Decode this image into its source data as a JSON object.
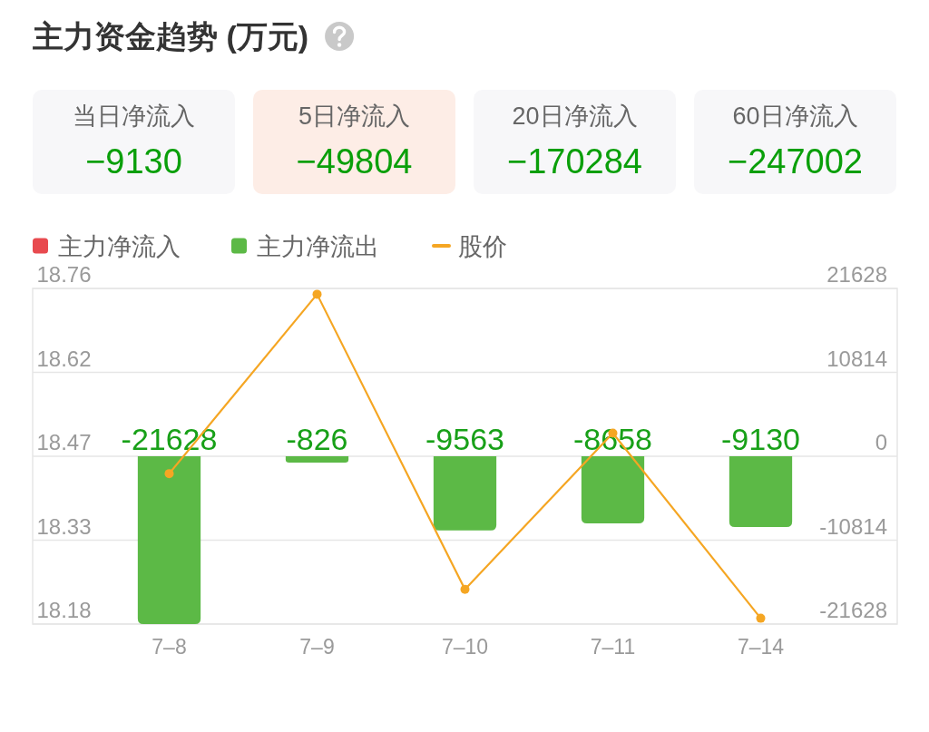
{
  "chart_data": [
    {
      "type": "other",
      "title": "主力资金趋势 (万元)",
      "categories": [
        "当日净流入",
        "5日净流入",
        "20日净流入",
        "60日净流入"
      ],
      "values": [
        -9130,
        -49804,
        -170284,
        -247002
      ],
      "data_labels": true,
      "colors": [
        "#f7f7f9",
        "#fdede6",
        "#f7f7f9",
        "#f7f7f9"
      ]
    },
    {
      "type": "bar",
      "categories": [
        "7–8",
        "7–9",
        "7–10",
        "7–11",
        "7–14"
      ],
      "stacked": true,
      "legend": "top left",
      "grid": "y",
      "ylim": [
        18.18,
        18.76
      ],
      "yticks": [
        18.18,
        {
          "value": 18.325,
          "label": "18.33"
        },
        18.47,
        {
          "value": 18.615,
          "label": "18.62"
        },
        18.76
      ],
      "y2lim": [
        -21628,
        21628
      ],
      "y2ticks": [
        -21628,
        -10814,
        0,
        10814,
        21628
      ],
      "series": [
        {
          "name": "主力净流入",
          "color": "#e84a4f",
          "axis": "y2",
          "values": [
            null,
            null,
            null,
            null,
            null
          ]
        },
        {
          "name": "主力净流出",
          "color": "#5cb946",
          "axis": "y2",
          "values": [
            -21628,
            -826,
            -9563,
            -8658,
            -9130
          ],
          "value_labels": [
            "-21628",
            "-826",
            "-9563",
            "-8658",
            "-9130"
          ]
        },
        {
          "name": "股价",
          "type": "line",
          "color": "#f5a623",
          "marker": "circle",
          "values": [
            18.44,
            18.75,
            18.24,
            18.51,
            18.19
          ]
        }
      ]
    }
  ]
}
